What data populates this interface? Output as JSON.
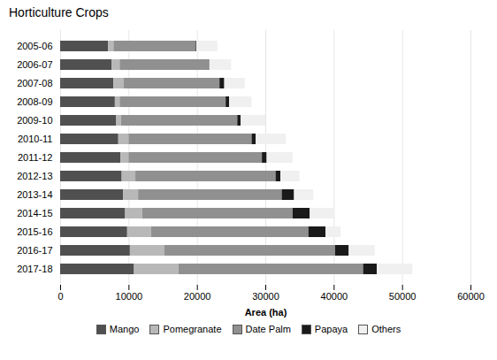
{
  "chart_data": {
    "type": "bar",
    "orientation": "horizontal",
    "stacked": true,
    "title": "Horticulture Crops",
    "xlabel": "Area (ha)",
    "categories": [
      "2005-06",
      "2006-07",
      "2007-08",
      "2008-09",
      "2009-10",
      "2010-11",
      "2011-12",
      "2012-13",
      "2013-14",
      "2014-15",
      "2015-16",
      "2016-17",
      "2017-18"
    ],
    "series": [
      {
        "name": "Mango",
        "color": "#505050",
        "values": [
          7000,
          7500,
          7800,
          8000,
          8200,
          8500,
          8800,
          9000,
          9200,
          9500,
          9800,
          10200,
          10800
        ]
      },
      {
        "name": "Pomegranate",
        "color": "#b8b8b8",
        "values": [
          800,
          1200,
          1500,
          700,
          700,
          1500,
          1200,
          2000,
          2200,
          2500,
          3500,
          5000,
          6500
        ]
      },
      {
        "name": "Date Palm",
        "color": "#909090",
        "values": [
          12000,
          13000,
          14000,
          15500,
          17000,
          18000,
          19500,
          20500,
          21000,
          22000,
          23000,
          25000,
          27000
        ]
      },
      {
        "name": "Papaya",
        "color": "#1a1a1a",
        "values": [
          100,
          100,
          700,
          500,
          500,
          600,
          700,
          700,
          1800,
          2500,
          2500,
          2000,
          2000
        ]
      },
      {
        "name": "Others",
        "color": "#f0f0f0",
        "values": [
          3100,
          3200,
          3000,
          3300,
          3600,
          4400,
          3800,
          2800,
          2800,
          3500,
          2200,
          3800,
          5200
        ]
      }
    ],
    "xlim": [
      0,
      60000
    ],
    "xticks": [
      0,
      10000,
      20000,
      30000,
      40000,
      50000,
      60000
    ],
    "grid": true,
    "legend": "bottom"
  }
}
